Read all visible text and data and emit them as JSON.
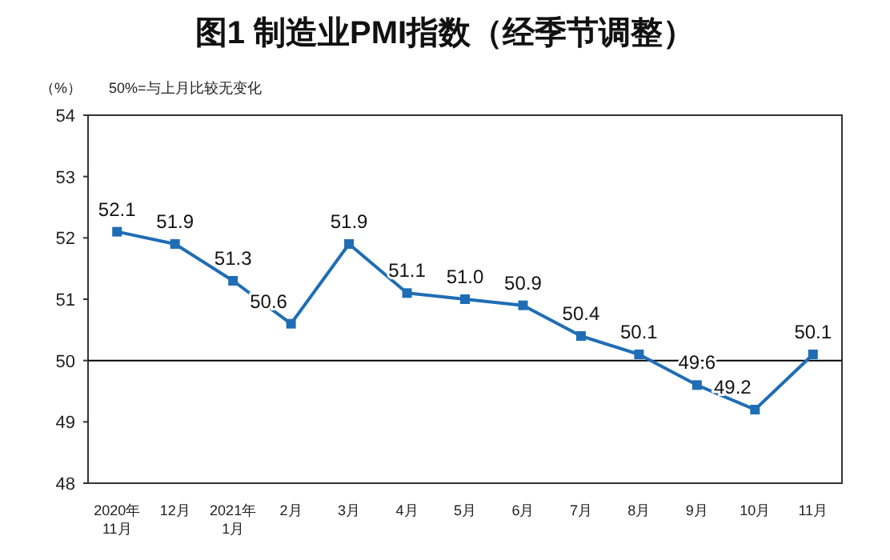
{
  "chart_data": {
    "type": "line",
    "title": "图1 制造业PMI指数（经季节调整）",
    "ylabel": "（%）",
    "annotations": [
      "50%=与上月比较无变化"
    ],
    "categories": [
      "2020年\n11月",
      "12月",
      "2021年\n1月",
      "2月",
      "3月",
      "4月",
      "5月",
      "6月",
      "7月",
      "8月",
      "9月",
      "10月",
      "11月"
    ],
    "values": [
      52.1,
      51.9,
      51.3,
      50.6,
      51.9,
      51.1,
      51.0,
      50.9,
      50.4,
      50.1,
      49.6,
      49.2,
      50.1
    ],
    "value_labels": [
      "52.1",
      "51.9",
      "51.3",
      "50.6",
      "51.9",
      "51.1",
      "51.0",
      "50.9",
      "50.4",
      "50.1",
      "49.6",
      "49.2",
      "50.1"
    ],
    "color": "#1f6db5",
    "marker": "square",
    "line_style": "solid",
    "ylim": [
      48,
      54
    ],
    "yticks": [
      48,
      49,
      50,
      51,
      52,
      53,
      54
    ],
    "ref_lines": [
      {
        "axis": "y",
        "value": 50,
        "color": "#000000"
      }
    ]
  }
}
